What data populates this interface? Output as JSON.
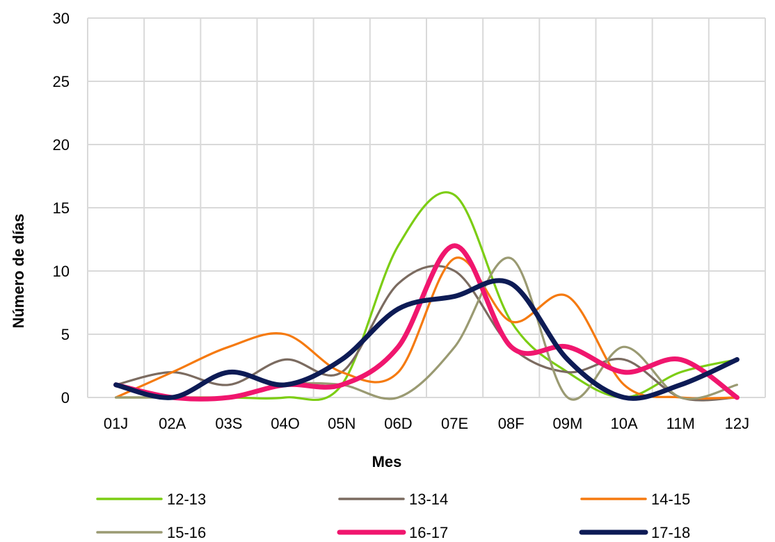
{
  "chart_data": {
    "type": "line",
    "smooth": true,
    "xlabel": "Mes",
    "ylabel": "Número de días",
    "ylim": [
      0,
      30
    ],
    "yticks": [
      0,
      5,
      10,
      15,
      20,
      25,
      30
    ],
    "grid": true,
    "legend_position": "bottom",
    "categories": [
      "01J",
      "02A",
      "03S",
      "04O",
      "05N",
      "06D",
      "07E",
      "08F",
      "09M",
      "10A",
      "11M",
      "12J"
    ],
    "series": [
      {
        "name": "12-13",
        "color": "#7ccd14",
        "width": "normal",
        "values": [
          0,
          0,
          0,
          0,
          1,
          12,
          16,
          6,
          2,
          0,
          2,
          3
        ]
      },
      {
        "name": "13-14",
        "color": "#7b6b60",
        "width": "normal",
        "values": [
          1,
          2,
          1,
          3,
          2,
          9,
          10,
          4,
          2,
          3,
          0,
          0
        ]
      },
      {
        "name": "14-15",
        "color": "#f57a10",
        "width": "normal",
        "values": [
          0,
          2,
          4,
          5,
          2,
          2,
          11,
          6,
          8,
          1,
          0,
          0
        ]
      },
      {
        "name": "15-16",
        "color": "#9a9a72",
        "width": "normal",
        "values": [
          0,
          0,
          0,
          1,
          1,
          0,
          4,
          11,
          0,
          4,
          0,
          1
        ]
      },
      {
        "name": "16-17",
        "color": "#f0166e",
        "width": "thick",
        "values": [
          1,
          0,
          0,
          1,
          1,
          4,
          12,
          4,
          4,
          2,
          3,
          0
        ]
      },
      {
        "name": "17-18",
        "color": "#0d1b55",
        "width": "thick",
        "values": [
          1,
          0,
          2,
          1,
          3,
          7,
          8,
          9,
          3,
          0,
          1,
          3
        ]
      }
    ]
  }
}
